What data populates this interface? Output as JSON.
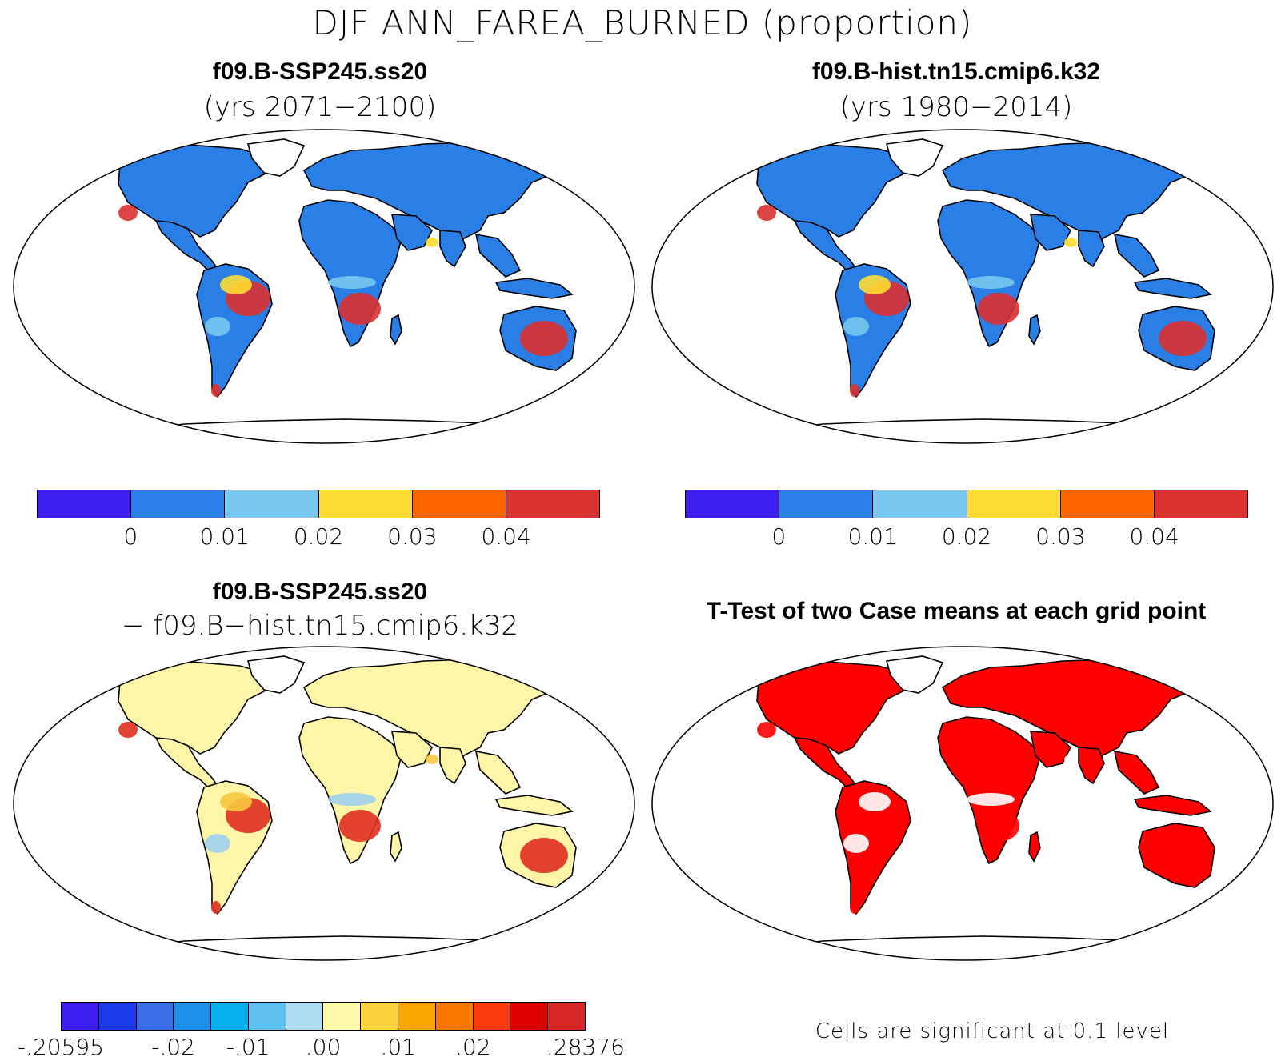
{
  "title": "DJF ANN_FAREA_BURNED (proportion)",
  "panels": [
    {
      "id": "ssp245",
      "title": "f09.B-SSP245.ss20",
      "subtitle": "(yrs 2071−2100)",
      "land_color": "#2a7fe6",
      "hot_color": "#d93030",
      "mid_color": "#ffdd33",
      "light_color": "#78c8f0"
    },
    {
      "id": "hist",
      "title": "f09.B-hist.tn15.cmip6.k32",
      "subtitle": "(yrs 1980−2014)",
      "land_color": "#2a7fe6",
      "hot_color": "#d93030",
      "mid_color": "#ffdd33",
      "light_color": "#78c8f0"
    },
    {
      "id": "diff",
      "title": "f09.B-SSP245.ss20",
      "subtitle": "− f09.B−hist.tn15.cmip6.k32",
      "land_color": "#fdf5a8",
      "hot_color": "#e03020",
      "mid_color": "#f7c840",
      "light_color": "#9fd0ee"
    },
    {
      "id": "ttest",
      "title": "T-Test of two Case means at each grid point",
      "subtitle": "",
      "land_color": "#ff0000",
      "hot_color": "#ff0000",
      "mid_color": "#ffffff",
      "light_color": "#ffffff"
    }
  ],
  "colorbar_main": {
    "colors": [
      "#3c1eee",
      "#2b7ee8",
      "#78c8f0",
      "#ffdd33",
      "#ff6600",
      "#d93030"
    ],
    "labels": [
      "0",
      "0.01",
      "0.02",
      "0.03",
      "0.04"
    ]
  },
  "colorbar_diff": {
    "colors": [
      "#3c1eee",
      "#1c3ae8",
      "#3a6ee6",
      "#1f8fee",
      "#09b0f0",
      "#5ec0f0",
      "#b0dcf2",
      "#fffaaa",
      "#fad23a",
      "#fba500",
      "#fb7800",
      "#fb3a10",
      "#e00000",
      "#d82828"
    ],
    "labels": [
      "-.20595",
      "-.02",
      "-.01",
      ".00",
      ".01",
      ".02",
      ".28376"
    ]
  },
  "significance_note": "Cells are significant at 0.1 level"
}
